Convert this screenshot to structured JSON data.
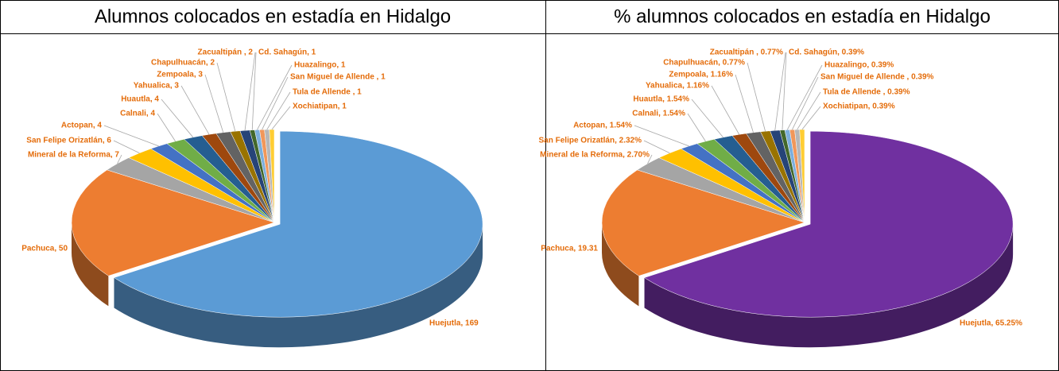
{
  "chart_data": [
    {
      "type": "pie3d",
      "title": "Alumnos colocados en estadía en Hidalgo",
      "values": [
        169,
        50,
        7,
        6,
        4,
        4,
        4,
        3,
        3,
        2,
        2,
        1,
        1,
        1,
        1,
        1
      ],
      "value_labels": [
        "Huejutla, 169",
        "Pachuca, 50",
        "Mineral de la Reforma, 7",
        "San Felipe Orizatlán, 6",
        "Actopan, 4",
        "Calnali, 4",
        "Huautla, 4",
        "Yahualica, 3",
        "Zempoala, 3",
        "Chapulhuacán, 2",
        "Zacualtipán , 2",
        "Cd. Sahagún, 1",
        "Huazalingo, 1",
        "San Miguel de Allende , 1",
        "Tula de Allende , 1",
        "Xochiatipan, 1"
      ],
      "colors": [
        "#5b9bd5",
        "#ed7d31",
        "#a5a5a5",
        "#ffc000",
        "#4472c4",
        "#70ad47",
        "#255e91",
        "#9e480e",
        "#636363",
        "#997300",
        "#264478",
        "#43682b",
        "#7cafdd",
        "#f1975a",
        "#b7b7b7",
        "#ffcd33"
      ]
    },
    {
      "type": "pie3d",
      "title": "% alumnos colocados en estadía en Hidalgo",
      "values": [
        65.25,
        19.31,
        2.7,
        2.32,
        1.54,
        1.54,
        1.54,
        1.16,
        1.16,
        0.77,
        0.77,
        0.39,
        0.39,
        0.39,
        0.39,
        0.39
      ],
      "value_labels": [
        "Huejutla, 65.25%",
        "Pachuca, 19.31",
        "Mineral de la Reforma, 2.70%",
        "San Felipe Orizatlán, 2.32%",
        "Actopan, 1.54%",
        "Calnali, 1.54%",
        "Huautla, 1.54%",
        "Yahualica, 1.16%",
        "Zempoala, 1.16%",
        "Chapulhuacán, 0.77%",
        "Zacualtipán , 0.77%",
        "Cd. Sahagún, 0.39%",
        "Huazalingo, 0.39%",
        "San Miguel de Allende , 0.39%",
        "Tula de Allende , 0.39%",
        "Xochiatipan, 0.39%"
      ],
      "colors": [
        "#7030a0",
        "#ed7d31",
        "#a5a5a5",
        "#ffc000",
        "#4472c4",
        "#70ad47",
        "#255e91",
        "#9e480e",
        "#636363",
        "#997300",
        "#264478",
        "#43682b",
        "#7cafdd",
        "#f1975a",
        "#b7b7b7",
        "#ffcd33"
      ]
    }
  ]
}
